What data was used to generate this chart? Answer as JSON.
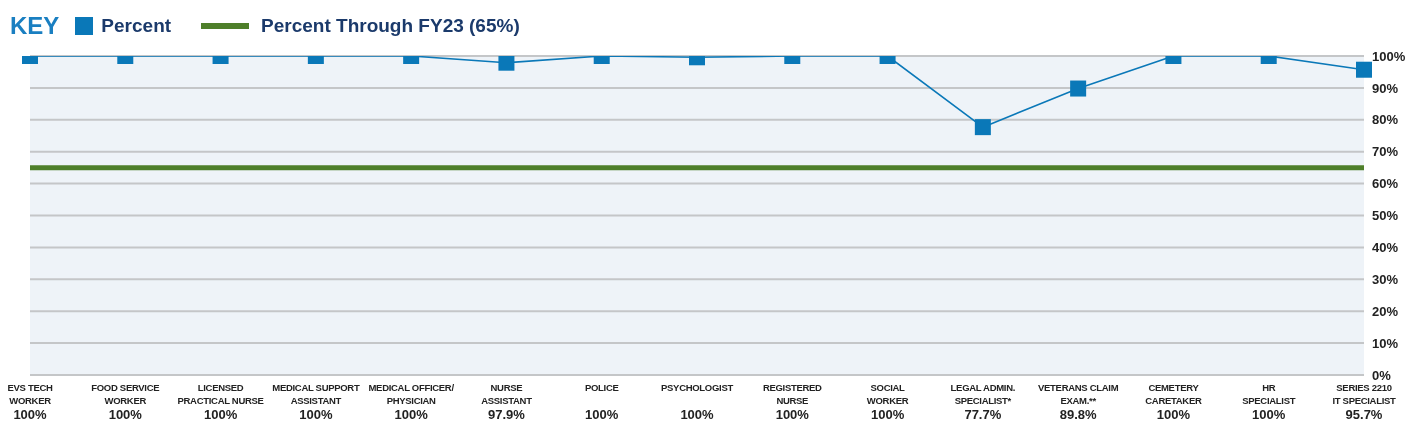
{
  "chart_data": {
    "type": "line",
    "legend_title": "KEY",
    "legend": "top left",
    "categories": [
      "EVS TECH\nWORKER",
      "FOOD SERVICE\nWORKER",
      "LICENSED\nPRACTICAL NURSE",
      "MEDICAL SUPPORT\nASSISTANT",
      "MEDICAL OFFICER/\nPHYSICIAN",
      "NURSE\nASSISTANT",
      "POLICE",
      "PSYCHOLOGIST",
      "REGISTERED\nNURSE",
      "SOCIAL\nWORKER",
      "LEGAL ADMIN.\nSPECIALIST*",
      "VETERANS CLAIM\nEXAM.**",
      "CEMETERY\nCARETAKER",
      "HR\nSPECIALIST",
      "SERIES 2210\nIT SPECIALIST"
    ],
    "series": [
      {
        "name": "Percent",
        "color": "#0a78b8",
        "values": [
          100,
          100,
          100,
          100,
          100,
          97.9,
          100,
          99.6,
          100,
          100,
          77.7,
          89.8,
          100,
          100,
          95.7
        ],
        "value_labels": [
          "100%",
          "100%",
          "100%",
          "100%",
          "100%",
          "97.9%",
          "100%",
          "100%",
          "100%",
          "100%",
          "77.7%",
          "89.8%",
          "100%",
          "100%",
          "95.7%"
        ]
      }
    ],
    "marker": "square",
    "line_style": "solid",
    "grid": "y",
    "ylim": [
      0,
      100
    ],
    "yticks": [
      {
        "value": 0,
        "label": "0%"
      },
      {
        "value": 10,
        "label": "10%"
      },
      {
        "value": 20,
        "label": "20%"
      },
      {
        "value": 30,
        "label": "30%"
      },
      {
        "value": 40,
        "label": "40%"
      },
      {
        "value": 50,
        "label": "50%"
      },
      {
        "value": 60,
        "label": "60%"
      },
      {
        "value": 70,
        "label": "70%"
      },
      {
        "value": 80,
        "label": "80%"
      },
      {
        "value": 90,
        "label": "90%"
      },
      {
        "value": 100,
        "label": "100%"
      }
    ],
    "ref_lines": [
      {
        "axis": "y",
        "value": 65,
        "label": "Percent Through FY23 (65%)",
        "color": "#4e7f2a"
      }
    ]
  }
}
